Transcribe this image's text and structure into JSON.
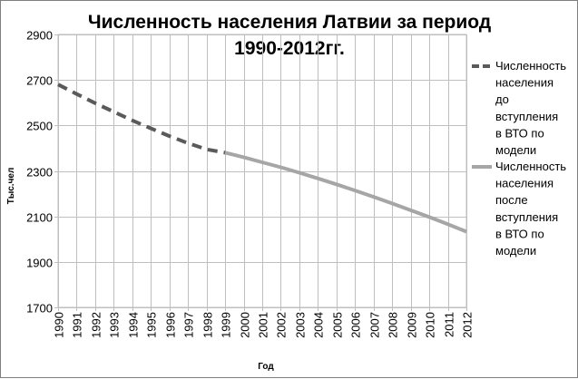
{
  "chart_data": {
    "type": "line",
    "title_lines": [
      "Численность населения Латвии за период",
      "1990-2012гг."
    ],
    "xlabel": "Год",
    "ylabel": "Тыс.чел",
    "ylim": [
      1700,
      2900
    ],
    "yticks": [
      1700,
      1900,
      2100,
      2300,
      2500,
      2700,
      2900
    ],
    "x": [
      1990,
      1991,
      1992,
      1993,
      1994,
      1995,
      1996,
      1997,
      1998,
      1999,
      2000,
      2001,
      2002,
      2003,
      2004,
      2005,
      2006,
      2007,
      2008,
      2009,
      2010,
      2011,
      2012
    ],
    "grid": true,
    "legend_position": "right",
    "series": [
      {
        "name_lines": [
          "Численность",
          "населения",
          "до",
          "вступления",
          "в ВТО по",
          "модели"
        ],
        "style": "dashed",
        "color": "#5a5a5a",
        "x": [
          1990,
          1991,
          1992,
          1993,
          1994,
          1995,
          1996,
          1997,
          1998,
          1999
        ],
        "values": [
          2680,
          2638,
          2598,
          2560,
          2522,
          2487,
          2453,
          2422,
          2395,
          2380
        ]
      },
      {
        "name_lines": [
          "Численность",
          "населения",
          "после",
          "вступления",
          "в ВТО по",
          "модели"
        ],
        "style": "solid",
        "color": "#a6a6a6",
        "x": [
          1999,
          2000,
          2001,
          2002,
          2003,
          2004,
          2005,
          2006,
          2007,
          2008,
          2009,
          2010,
          2011,
          2012
        ],
        "values": [
          2380,
          2360,
          2338,
          2316,
          2292,
          2267,
          2241,
          2214,
          2186,
          2157,
          2127,
          2097,
          2066,
          2033
        ]
      }
    ]
  }
}
